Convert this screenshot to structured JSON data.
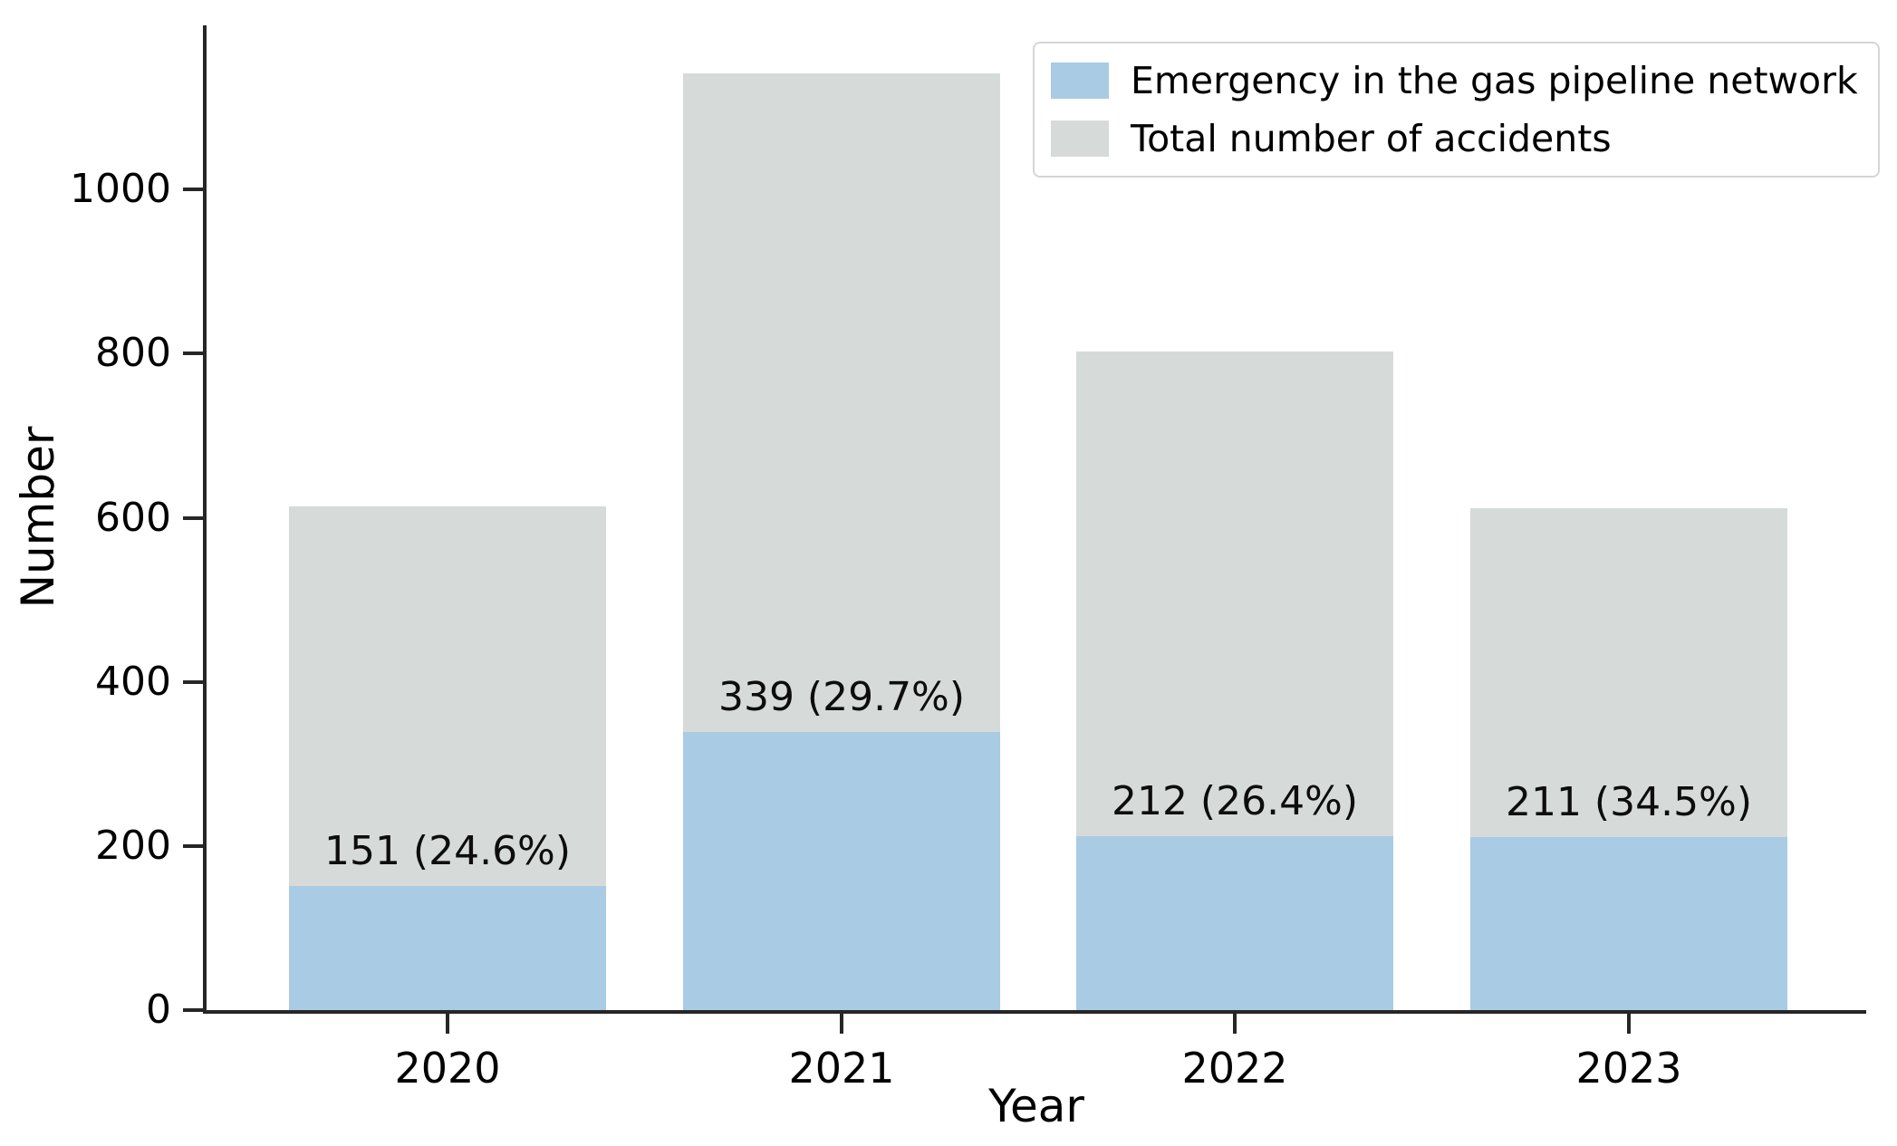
{
  "chart_data": {
    "type": "bar",
    "title": "",
    "xlabel": "Year",
    "ylabel": "Number",
    "categories": [
      "2020",
      "2021",
      "2022",
      "2023"
    ],
    "series": [
      {
        "name": "Emergency in the gas pipeline network",
        "color": "#a9cbe3",
        "values": [
          151,
          339,
          212,
          211
        ]
      },
      {
        "name": "Total number of accidents",
        "color": "#d6dbda",
        "values": [
          614,
          1141,
          803,
          612
        ]
      }
    ],
    "bar_labels": [
      "151 (24.6%)",
      "339 (29.7%)",
      "212 (26.4%)",
      "211 (34.5%)"
    ],
    "percent_of_total": [
      24.6,
      29.7,
      26.4,
      34.5
    ],
    "yticks": [
      0,
      200,
      400,
      600,
      800,
      1000
    ],
    "ylim": [
      0,
      1200
    ],
    "grid": false,
    "legend_position": "upper right",
    "bar_style": "overlaid"
  }
}
